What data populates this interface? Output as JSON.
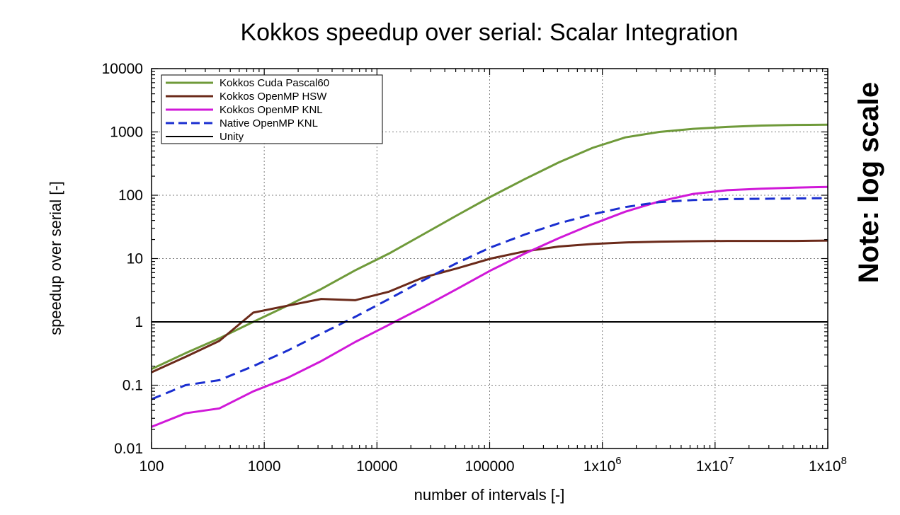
{
  "chart_data": {
    "type": "line",
    "title": "Kokkos speedup over serial: Scalar Integration",
    "xlabel": "number of intervals [-]",
    "ylabel": "speedup over serial [-]",
    "xscale": "log",
    "yscale": "log",
    "xlim": [
      100,
      100000000
    ],
    "ylim": [
      0.01,
      10000
    ],
    "x_tick_values": [
      100,
      1000,
      10000,
      100000,
      1000000,
      10000000,
      100000000
    ],
    "x_tick_labels": [
      "100",
      "1000",
      "10000",
      "100000",
      "1x10^6",
      "1x10^7",
      "1x10^8"
    ],
    "y_tick_values": [
      0.01,
      0.1,
      1,
      10,
      100,
      1000,
      10000
    ],
    "y_tick_labels": [
      "0.01",
      "0.1",
      "1",
      "10",
      "100",
      "1000",
      "10000"
    ],
    "grid": true,
    "legend_position": "top-left",
    "annotation": "Note:  log scale",
    "series": [
      {
        "name": "Kokkos Cuda Pascal60",
        "color": "#6f9a3a",
        "dash": "solid",
        "x": [
          100,
          200,
          400,
          800,
          1600,
          3200,
          6400,
          12800,
          25600,
          51200,
          102400,
          204800,
          409600,
          819200,
          1600000,
          3200000,
          6400000,
          12800000,
          25600000,
          51200000,
          100000000
        ],
        "y": [
          0.18,
          0.32,
          0.55,
          1.0,
          1.8,
          3.3,
          6.5,
          12,
          24,
          48,
          95,
          180,
          330,
          560,
          820,
          1000,
          1120,
          1200,
          1260,
          1290,
          1300
        ]
      },
      {
        "name": "Kokkos OpenMP HSW",
        "color": "#6b2a1a",
        "dash": "solid",
        "x": [
          100,
          200,
          400,
          800,
          1600,
          3200,
          6400,
          12800,
          25600,
          51200,
          102400,
          204800,
          409600,
          819200,
          1600000,
          3200000,
          6400000,
          12800000,
          25600000,
          51200000,
          100000000
        ],
        "y": [
          0.16,
          0.28,
          0.5,
          1.4,
          1.8,
          2.3,
          2.2,
          3.0,
          5.0,
          7.0,
          10,
          13,
          15.5,
          17,
          18,
          18.5,
          18.8,
          19,
          19,
          19,
          19.2
        ]
      },
      {
        "name": "Kokkos OpenMP KNL",
        "color": "#d018d8",
        "dash": "solid",
        "x": [
          100,
          200,
          400,
          800,
          1600,
          3200,
          6400,
          12800,
          25600,
          51200,
          102400,
          204800,
          409600,
          819200,
          1600000,
          3200000,
          6400000,
          12800000,
          25600000,
          51200000,
          100000000
        ],
        "y": [
          0.022,
          0.036,
          0.043,
          0.08,
          0.13,
          0.24,
          0.48,
          0.9,
          1.7,
          3.3,
          6.5,
          12,
          21,
          35,
          55,
          80,
          105,
          120,
          127,
          132,
          135
        ]
      },
      {
        "name": "Native OpenMP KNL",
        "color": "#1a2ed0",
        "dash": "dashed",
        "x": [
          100,
          200,
          400,
          800,
          1600,
          3200,
          6400,
          12800,
          25600,
          51200,
          102400,
          204800,
          409600,
          819200,
          1600000,
          3200000,
          6400000,
          12800000,
          25600000,
          51200000,
          100000000
        ],
        "y": [
          0.06,
          0.1,
          0.12,
          0.2,
          0.35,
          0.65,
          1.2,
          2.3,
          4.5,
          8.5,
          15,
          24,
          36,
          50,
          65,
          78,
          84,
          87,
          88,
          89,
          90
        ]
      },
      {
        "name": "Unity",
        "color": "#000000",
        "dash": "solid",
        "x": [
          100,
          100000000
        ],
        "y": [
          1,
          1
        ]
      }
    ]
  }
}
